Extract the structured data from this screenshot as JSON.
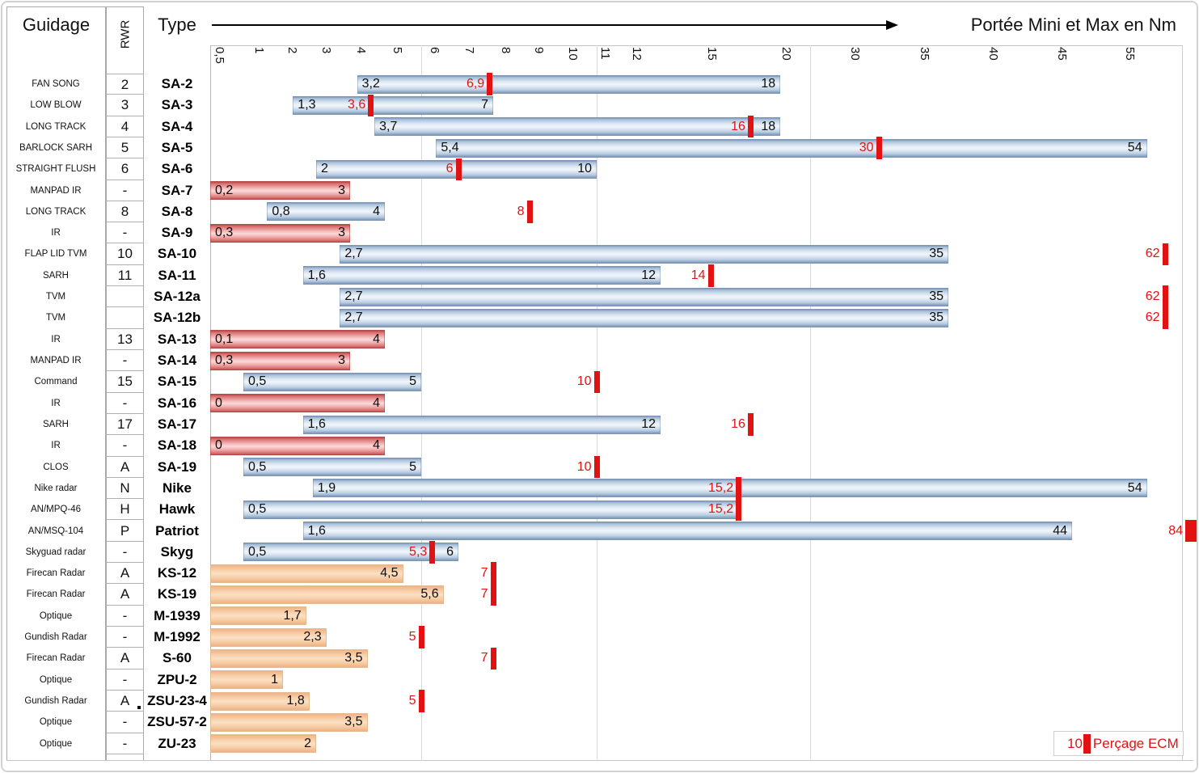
{
  "header": {
    "guidage": "Guidage",
    "rwr": "RWR",
    "type": "Type",
    "title": "Portée Mini et Max en Nm"
  },
  "legend": {
    "value": "10",
    "label": "Perçage ECM"
  },
  "colors": {
    "bar_blue": "#c9d9ea",
    "bar_pink": "#f3b0b0",
    "bar_orange": "#f7cfa8",
    "ecm_red": "#e31212"
  },
  "axis": {
    "ticks": [
      {
        "v": 0.5,
        "label": "0,5"
      },
      {
        "v": 1,
        "label": "1"
      },
      {
        "v": 2,
        "label": "2"
      },
      {
        "v": 3,
        "label": "3"
      },
      {
        "v": 4,
        "label": "4"
      },
      {
        "v": 5,
        "label": "5"
      },
      {
        "v": 6,
        "label": "6"
      },
      {
        "v": 7,
        "label": "7"
      },
      {
        "v": 8,
        "label": "8"
      },
      {
        "v": 9,
        "label": "9"
      },
      {
        "v": 10,
        "label": "10"
      },
      {
        "v": 11,
        "label": "11"
      },
      {
        "v": 12,
        "label": "12"
      },
      {
        "v": 15,
        "label": "15"
      },
      {
        "v": 20,
        "label": "20"
      },
      {
        "v": 30,
        "label": "30"
      },
      {
        "v": 35,
        "label": "35"
      },
      {
        "v": 40,
        "label": "40"
      },
      {
        "v": 45,
        "label": "45"
      },
      {
        "v": 55,
        "label": "55"
      }
    ],
    "gridline_values": [
      5,
      10,
      20
    ]
  },
  "chart_data": {
    "type": "bar",
    "orientation": "horizontal",
    "title": "Portée Mini et Max en Nm",
    "unit": "Nm",
    "x_ticks": [
      "0,5",
      "1",
      "2",
      "3",
      "4",
      "5",
      "6",
      "7",
      "8",
      "9",
      "10",
      "11",
      "12",
      "15",
      "20",
      "30",
      "35",
      "40",
      "45",
      "55"
    ],
    "legend": "Perçage ECM",
    "rows": [
      {
        "guidage": "FAN SONG",
        "rwr": "2",
        "type": "SA-2",
        "color": "blue",
        "min": 3.2,
        "min_label": "3,2",
        "max": 18,
        "max_label": "18",
        "ecm": 6.9,
        "ecm_label": "6,9",
        "mark": false
      },
      {
        "guidage": "LOW BLOW",
        "rwr": "3",
        "type": "SA-3",
        "color": "blue",
        "min": 1.3,
        "min_label": "1,3",
        "max": 7,
        "max_label": "7",
        "ecm": 3.6,
        "ecm_label": "3,6",
        "mark": false
      },
      {
        "guidage": "LONG TRACK",
        "rwr": "4",
        "type": "SA-4",
        "color": "blue",
        "min": 3.7,
        "min_label": "3,7",
        "max": 18,
        "max_label": "18",
        "ecm": 16,
        "ecm_label": "16",
        "mark": false
      },
      {
        "guidage": "BARLOCK SARH",
        "rwr": "5",
        "type": "SA-5",
        "color": "blue",
        "min": 5.4,
        "min_label": "5,4",
        "max": 54,
        "max_label": "54",
        "ecm": 30,
        "ecm_label": "30",
        "mark": false
      },
      {
        "guidage": "STRAIGHT FLUSH",
        "rwr": "6",
        "type": "SA-6",
        "color": "blue",
        "min": 2,
        "min_label": "2",
        "max": 10,
        "max_label": "10",
        "ecm": 6,
        "ecm_label": "6",
        "mark": false
      },
      {
        "guidage": "MANPAD IR",
        "rwr": "-",
        "type": "SA-7",
        "color": "pink",
        "min": 0.2,
        "min_label": "0,2",
        "max": 3,
        "max_label": "3",
        "ecm": null,
        "ecm_label": null,
        "mark": false
      },
      {
        "guidage": "LONG TRACK",
        "rwr": "8",
        "type": "SA-8",
        "color": "blue",
        "min": 0.8,
        "min_label": "0,8",
        "max": 4,
        "max_label": "4",
        "ecm": 8,
        "ecm_label": "8",
        "mark": false
      },
      {
        "guidage": "IR",
        "rwr": "-",
        "type": "SA-9",
        "color": "pink",
        "min": 0.3,
        "min_label": "0,3",
        "max": 3,
        "max_label": "3",
        "ecm": null,
        "ecm_label": null,
        "mark": false
      },
      {
        "guidage": "FLAP LID TVM",
        "rwr": "10",
        "type": "SA-10",
        "color": "blue",
        "min": 2.7,
        "min_label": "2,7",
        "max": 35,
        "max_label": "35",
        "ecm": 62,
        "ecm_label": "62",
        "mark": false
      },
      {
        "guidage": "SARH",
        "rwr": "11",
        "type": "SA-11",
        "color": "blue",
        "min": 1.6,
        "min_label": "1,6",
        "max": 12,
        "max_label": "12",
        "ecm": 14,
        "ecm_label": "14",
        "mark": false
      },
      {
        "guidage": "TVM",
        "rwr": "",
        "type": "SA-12a",
        "color": "blue",
        "min": 2.7,
        "min_label": "2,7",
        "max": 35,
        "max_label": "35",
        "ecm": 62,
        "ecm_label": "62",
        "mark": false
      },
      {
        "guidage": "TVM",
        "rwr": "",
        "type": "SA-12b",
        "color": "blue",
        "min": 2.7,
        "min_label": "2,7",
        "max": 35,
        "max_label": "35",
        "ecm": 62,
        "ecm_label": "62",
        "mark": false
      },
      {
        "guidage": "IR",
        "rwr": "13",
        "type": "SA-13",
        "color": "pink",
        "min": 0.1,
        "min_label": "0,1",
        "max": 4,
        "max_label": "4",
        "ecm": null,
        "ecm_label": null,
        "mark": false
      },
      {
        "guidage": "MANPAD IR",
        "rwr": "-",
        "type": "SA-14",
        "color": "pink",
        "min": 0.3,
        "min_label": "0,3",
        "max": 3,
        "max_label": "3",
        "ecm": null,
        "ecm_label": null,
        "mark": false
      },
      {
        "guidage": "Command",
        "rwr": "15",
        "type": "SA-15",
        "color": "blue",
        "min": 0.5,
        "min_label": "0,5",
        "max": 5,
        "max_label": "5",
        "ecm": 10,
        "ecm_label": "10",
        "mark": false
      },
      {
        "guidage": "IR",
        "rwr": "-",
        "type": "SA-16",
        "color": "pink",
        "min": 0,
        "min_label": "0",
        "max": 4,
        "max_label": "4",
        "ecm": null,
        "ecm_label": null,
        "mark": false
      },
      {
        "guidage": "SARH",
        "rwr": "17",
        "type": "SA-17",
        "color": "blue",
        "min": 1.6,
        "min_label": "1,6",
        "max": 12,
        "max_label": "12",
        "ecm": 16,
        "ecm_label": "16",
        "mark": false
      },
      {
        "guidage": "IR",
        "rwr": "-",
        "type": "SA-18",
        "color": "pink",
        "min": 0,
        "min_label": "0",
        "max": 4,
        "max_label": "4",
        "ecm": null,
        "ecm_label": null,
        "mark": false
      },
      {
        "guidage": "CLOS",
        "rwr": "A",
        "type": "SA-19",
        "color": "blue",
        "min": 0.5,
        "min_label": "0,5",
        "max": 5,
        "max_label": "5",
        "ecm": 10,
        "ecm_label": "10",
        "mark": false
      },
      {
        "guidage": "Nike radar",
        "rwr": "N",
        "type": "Nike",
        "color": "blue",
        "min": 1.9,
        "min_label": "1,9",
        "max": 54,
        "max_label": "54",
        "ecm": 15.2,
        "ecm_label": "15,2",
        "mark": false
      },
      {
        "guidage": "AN/MPQ-46",
        "rwr": "H",
        "type": "Hawk",
        "color": "blue",
        "min": 0.5,
        "min_label": "0,5",
        "max": 15.2,
        "max_label": null,
        "ecm": 15.2,
        "ecm_label": "15,2",
        "mark": false
      },
      {
        "guidage": "AN/MSQ-104",
        "rwr": "P",
        "type": "Patriot",
        "color": "blue",
        "min": 1.6,
        "min_label": "1,6",
        "max": 44,
        "max_label": "44",
        "ecm": 84,
        "ecm_label": "84",
        "mark": false
      },
      {
        "guidage": "Skyguad radar",
        "rwr": "-",
        "type": "Skyg",
        "color": "blue",
        "min": 0.5,
        "min_label": "0,5",
        "max": 6,
        "max_label": "6",
        "ecm": 5.3,
        "ecm_label": "5,3",
        "mark": false
      },
      {
        "guidage": "Firecan Radar",
        "rwr": "A",
        "type": "KS-12",
        "color": "orange",
        "min": null,
        "min_label": null,
        "max": 4.5,
        "max_label": "4,5",
        "ecm": 7,
        "ecm_label": "7",
        "mark": false
      },
      {
        "guidage": "Firecan Radar",
        "rwr": "A",
        "type": "KS-19",
        "color": "orange",
        "min": null,
        "min_label": null,
        "max": 5.6,
        "max_label": "5,6",
        "ecm": 7,
        "ecm_label": "7",
        "mark": false
      },
      {
        "guidage": "Optique",
        "rwr": "-",
        "type": "M-1939",
        "color": "orange",
        "min": null,
        "min_label": null,
        "max": 1.7,
        "max_label": "1,7",
        "ecm": null,
        "ecm_label": null,
        "mark": false
      },
      {
        "guidage": "Gundish Radar",
        "rwr": "-",
        "type": "M-1992",
        "color": "orange",
        "min": null,
        "min_label": null,
        "max": 2.3,
        "max_label": "2,3",
        "ecm": 5,
        "ecm_label": "5",
        "mark": false
      },
      {
        "guidage": "Firecan Radar",
        "rwr": "A",
        "type": "S-60",
        "color": "orange",
        "min": null,
        "min_label": null,
        "max": 3.5,
        "max_label": "3,5",
        "ecm": 7,
        "ecm_label": "7",
        "mark": false
      },
      {
        "guidage": "Optique",
        "rwr": "-",
        "type": "ZPU-2",
        "color": "orange",
        "min": null,
        "min_label": null,
        "max": 1,
        "max_label": "1",
        "ecm": null,
        "ecm_label": null,
        "mark": false
      },
      {
        "guidage": "Gundish Radar",
        "rwr": "A",
        "type": "ZSU-23-4",
        "color": "orange",
        "min": null,
        "min_label": null,
        "max": 1.8,
        "max_label": "1,8",
        "ecm": 5,
        "ecm_label": "5",
        "mark": true
      },
      {
        "guidage": "Optique",
        "rwr": "-",
        "type": "ZSU-57-2",
        "color": "orange",
        "min": null,
        "min_label": null,
        "max": 3.5,
        "max_label": "3,5",
        "ecm": null,
        "ecm_label": null,
        "mark": false
      },
      {
        "guidage": "Optique",
        "rwr": "-",
        "type": "ZU-23",
        "color": "orange",
        "min": null,
        "min_label": null,
        "max": 2,
        "max_label": "2",
        "ecm": null,
        "ecm_label": null,
        "mark": false
      }
    ]
  }
}
